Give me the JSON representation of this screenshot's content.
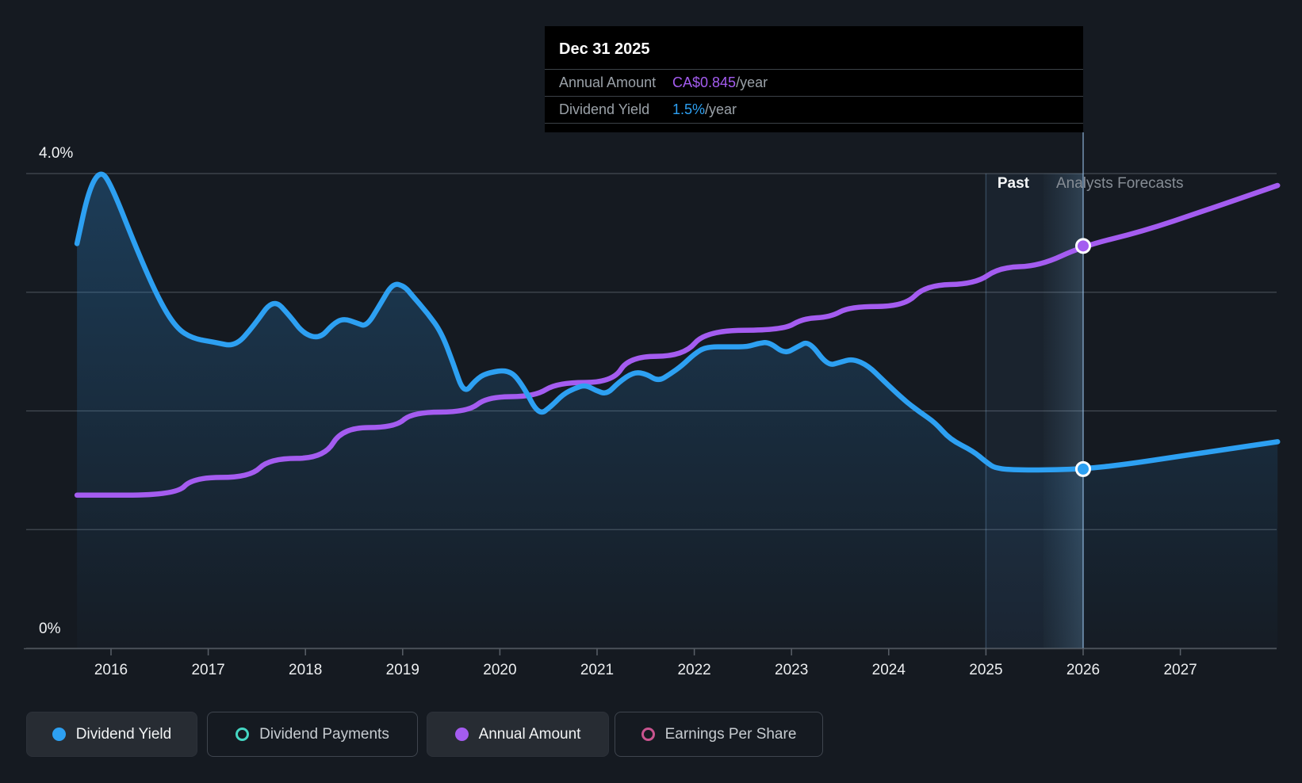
{
  "colors": {
    "blue": "#2da0f2",
    "purple": "#a45cf0",
    "teal": "#45d6c3",
    "pink": "#c9548f",
    "grid": "#454b53",
    "axis": "#4d535b",
    "tick": "#5a6068",
    "crosshair": "rgba(151,191,231,0.55)",
    "band_left": "rgba(96,160,220,0.07)",
    "band_edge": "rgba(130,175,220,0.28)",
    "band_grad_from": "rgba(110,175,235,0.08)",
    "band_grad_to": "rgba(140,205,255,0.22)",
    "area_top": "rgba(45,140,215,0.30)",
    "area_bottom": "rgba(45,140,215,0.02)",
    "x_label": "#eceef0"
  },
  "tooltip": {
    "date": "Dec 31 2025",
    "rows": [
      {
        "label": "Annual Amount",
        "value": "CA$0.845",
        "suffix": "/year",
        "color_key": "purple"
      },
      {
        "label": "Dividend Yield",
        "value": "1.5%",
        "suffix": "/year",
        "color_key": "blue"
      }
    ]
  },
  "chart_data": {
    "type": "line",
    "title": "",
    "x_axis": {
      "domain_years": [
        2015.65,
        2028.0
      ],
      "ticks": [
        {
          "year": 2016,
          "label": "2016"
        },
        {
          "year": 2017,
          "label": "2017"
        },
        {
          "year": 2018,
          "label": "2018"
        },
        {
          "year": 2019,
          "label": "2019"
        },
        {
          "year": 2020,
          "label": "2020"
        },
        {
          "year": 2021,
          "label": "2021"
        },
        {
          "year": 2022,
          "label": "2022"
        },
        {
          "year": 2023,
          "label": "2023"
        },
        {
          "year": 2024,
          "label": "2024"
        },
        {
          "year": 2025,
          "label": "2025"
        },
        {
          "year": 2026,
          "label": "2026"
        },
        {
          "year": 2027,
          "label": "2027"
        }
      ]
    },
    "y_axis": {
      "top_label": "4.0%",
      "bottom_label": "0%",
      "domain_pct": [
        0,
        4
      ],
      "gridlines_pct": [
        0,
        1,
        2,
        3,
        4
      ]
    },
    "annotations": {
      "past": "Past",
      "forecasts": "Analysts Forecasts"
    },
    "band": {
      "start_year": 2025.0,
      "divider_year": 2025.59,
      "end_year": 2026.0
    },
    "crosshair_year": 2026.0,
    "series": [
      {
        "name": "Dividend Yield",
        "color_key": "blue",
        "style": "area",
        "points": [
          [
            2015.65,
            3.41
          ],
          [
            2015.77,
            3.86
          ],
          [
            2015.89,
            4.03
          ],
          [
            2016.0,
            3.91
          ],
          [
            2016.27,
            3.35
          ],
          [
            2016.49,
            2.94
          ],
          [
            2016.67,
            2.7
          ],
          [
            2016.84,
            2.61
          ],
          [
            2017.06,
            2.58
          ],
          [
            2017.28,
            2.54
          ],
          [
            2017.47,
            2.72
          ],
          [
            2017.67,
            2.95
          ],
          [
            2017.84,
            2.8
          ],
          [
            2017.98,
            2.65
          ],
          [
            2018.15,
            2.61
          ],
          [
            2018.28,
            2.73
          ],
          [
            2018.39,
            2.78
          ],
          [
            2018.53,
            2.74
          ],
          [
            2018.63,
            2.71
          ],
          [
            2018.77,
            2.9
          ],
          [
            2018.9,
            3.08
          ],
          [
            2019.02,
            3.05
          ],
          [
            2019.1,
            2.97
          ],
          [
            2019.26,
            2.82
          ],
          [
            2019.4,
            2.66
          ],
          [
            2019.52,
            2.4
          ],
          [
            2019.63,
            2.14
          ],
          [
            2019.75,
            2.26
          ],
          [
            2019.86,
            2.32
          ],
          [
            2020.1,
            2.35
          ],
          [
            2020.24,
            2.21
          ],
          [
            2020.4,
            1.96
          ],
          [
            2020.53,
            2.04
          ],
          [
            2020.65,
            2.14
          ],
          [
            2020.77,
            2.19
          ],
          [
            2020.88,
            2.22
          ],
          [
            2020.99,
            2.17
          ],
          [
            2021.1,
            2.14
          ],
          [
            2021.22,
            2.24
          ],
          [
            2021.38,
            2.33
          ],
          [
            2021.51,
            2.31
          ],
          [
            2021.63,
            2.25
          ],
          [
            2021.75,
            2.31
          ],
          [
            2021.87,
            2.38
          ],
          [
            2022.0,
            2.48
          ],
          [
            2022.12,
            2.54
          ],
          [
            2022.36,
            2.54
          ],
          [
            2022.55,
            2.54
          ],
          [
            2022.66,
            2.57
          ],
          [
            2022.77,
            2.58
          ],
          [
            2022.93,
            2.48
          ],
          [
            2023.06,
            2.54
          ],
          [
            2023.18,
            2.59
          ],
          [
            2023.37,
            2.38
          ],
          [
            2023.5,
            2.41
          ],
          [
            2023.63,
            2.44
          ],
          [
            2023.79,
            2.38
          ],
          [
            2023.94,
            2.26
          ],
          [
            2024.16,
            2.09
          ],
          [
            2024.32,
            1.99
          ],
          [
            2024.48,
            1.9
          ],
          [
            2024.63,
            1.76
          ],
          [
            2024.87,
            1.66
          ],
          [
            2025.0,
            1.57
          ],
          [
            2025.11,
            1.51
          ],
          [
            2025.46,
            1.5
          ],
          [
            2026.0,
            1.51
          ],
          [
            2026.44,
            1.55
          ],
          [
            2026.93,
            1.61
          ],
          [
            2027.42,
            1.67
          ],
          [
            2028.0,
            1.74
          ]
        ]
      },
      {
        "name": "Annual Amount",
        "color_key": "purple",
        "style": "line",
        "points": [
          [
            2015.65,
            1.29
          ],
          [
            2016.67,
            1.29
          ],
          [
            2016.84,
            1.44
          ],
          [
            2017.43,
            1.44
          ],
          [
            2017.63,
            1.6
          ],
          [
            2018.19,
            1.6
          ],
          [
            2018.38,
            1.86
          ],
          [
            2018.92,
            1.86
          ],
          [
            2019.1,
            1.99
          ],
          [
            2019.67,
            1.99
          ],
          [
            2019.87,
            2.12
          ],
          [
            2020.36,
            2.12
          ],
          [
            2020.59,
            2.24
          ],
          [
            2021.16,
            2.24
          ],
          [
            2021.33,
            2.46
          ],
          [
            2021.89,
            2.46
          ],
          [
            2022.12,
            2.68
          ],
          [
            2022.91,
            2.68
          ],
          [
            2023.12,
            2.78
          ],
          [
            2023.4,
            2.79
          ],
          [
            2023.6,
            2.88
          ],
          [
            2024.16,
            2.88
          ],
          [
            2024.38,
            3.06
          ],
          [
            2024.89,
            3.07
          ],
          [
            2025.14,
            3.21
          ],
          [
            2025.55,
            3.22
          ],
          [
            2026.0,
            3.39
          ],
          [
            2026.6,
            3.51
          ],
          [
            2027.26,
            3.69
          ],
          [
            2028.0,
            3.9
          ]
        ]
      }
    ],
    "markers": [
      {
        "series": "Annual Amount",
        "color_key": "purple",
        "year": 2026.0,
        "value_pct": 3.39
      },
      {
        "series": "Dividend Yield",
        "color_key": "blue",
        "year": 2026.0,
        "value_pct": 1.51
      }
    ]
  },
  "legend": {
    "items": [
      {
        "label": "Dividend Yield",
        "swatch": "filled",
        "color_key": "blue",
        "active": true
      },
      {
        "label": "Dividend Payments",
        "swatch": "ring",
        "color_key": "teal",
        "active": false
      },
      {
        "label": "Annual Amount",
        "swatch": "filled",
        "color_key": "purple",
        "active": true
      },
      {
        "label": "Earnings Per Share",
        "swatch": "ring",
        "color_key": "pink",
        "active": false
      }
    ]
  }
}
